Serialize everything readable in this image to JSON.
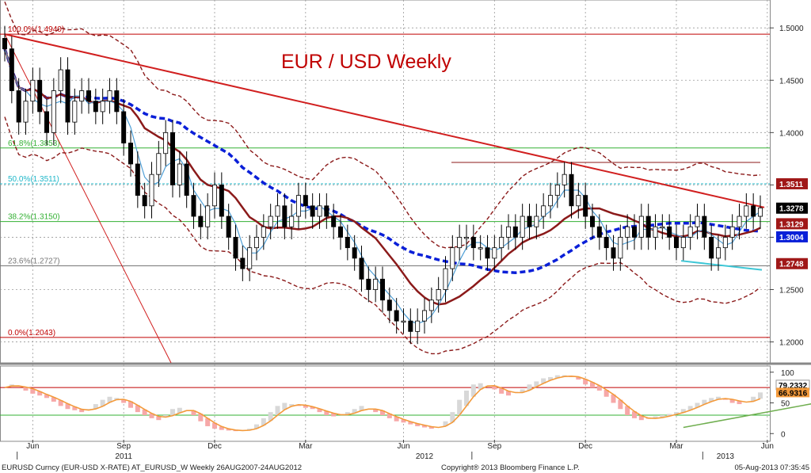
{
  "chart_data": {
    "type": "candlestick",
    "title": "EUR / USD Weekly",
    "ylim": [
      1.18,
      1.51
    ],
    "y_ticks": [
      "1.5000",
      "1.4500",
      "1.4000",
      "1.3500",
      "1.3000",
      "1.2500",
      "1.2000"
    ],
    "x_ticks": [
      {
        "label": "Jun",
        "i": 4
      },
      {
        "label": "Sep",
        "i": 17
      },
      {
        "label": "Dec",
        "i": 30
      },
      {
        "label": "Mar",
        "i": 43
      },
      {
        "label": "Jun",
        "i": 57
      },
      {
        "label": "Sep",
        "i": 70
      },
      {
        "label": "Dec",
        "i": 83
      },
      {
        "label": "Mar",
        "i": 96
      },
      {
        "label": "Jun",
        "i": 109
      }
    ],
    "year_labels": [
      {
        "label": "2011",
        "i": 17
      },
      {
        "label": "2012",
        "i": 60
      },
      {
        "label": "2013",
        "i": 103
      }
    ],
    "closes": [
      1.48,
      1.44,
      1.41,
      1.43,
      1.45,
      1.42,
      1.4,
      1.44,
      1.46,
      1.41,
      1.43,
      1.44,
      1.43,
      1.42,
      1.43,
      1.44,
      1.42,
      1.39,
      1.37,
      1.34,
      1.33,
      1.36,
      1.38,
      1.4,
      1.35,
      1.37,
      1.34,
      1.32,
      1.31,
      1.33,
      1.35,
      1.32,
      1.3,
      1.28,
      1.27,
      1.29,
      1.3,
      1.31,
      1.32,
      1.33,
      1.31,
      1.32,
      1.34,
      1.33,
      1.32,
      1.33,
      1.32,
      1.31,
      1.3,
      1.29,
      1.28,
      1.26,
      1.25,
      1.26,
      1.24,
      1.23,
      1.22,
      1.22,
      1.21,
      1.22,
      1.23,
      1.24,
      1.25,
      1.27,
      1.29,
      1.3,
      1.3,
      1.29,
      1.29,
      1.28,
      1.29,
      1.3,
      1.31,
      1.3,
      1.32,
      1.31,
      1.32,
      1.33,
      1.34,
      1.35,
      1.36,
      1.33,
      1.34,
      1.32,
      1.31,
      1.3,
      1.29,
      1.28,
      1.3,
      1.31,
      1.3,
      1.32,
      1.3,
      1.31,
      1.31,
      1.3,
      1.29,
      1.3,
      1.31,
      1.32,
      1.3,
      1.28,
      1.29,
      1.3,
      1.31,
      1.32,
      1.33,
      1.32,
      1.328
    ],
    "indicators": {
      "ma_fast": "#4f9fd6",
      "ma_slow": "#8b1a1a",
      "ma_long": "#0a1fd8",
      "bands": "#8b1a1a"
    },
    "fib_levels": [
      {
        "label": "100.0%(1.4940)",
        "value": 1.494,
        "color": "#c00000"
      },
      {
        "label": "61.8%(1.3853)",
        "value": 1.3853,
        "color": "#33b033"
      },
      {
        "label": "50.0%(1.3511)",
        "value": 1.3511,
        "color": "#1fb7c9"
      },
      {
        "label": "38.2%(1.3150)",
        "value": 1.315,
        "color": "#33b033"
      },
      {
        "label": "23.6%(1.2727)",
        "value": 1.2727,
        "color": "#777777"
      },
      {
        "label": "0.0%(1.2043)",
        "value": 1.2043,
        "color": "#c00000"
      }
    ],
    "price_tags": [
      {
        "label": "1.3511",
        "value": 1.3511,
        "bg": "#a01818"
      },
      {
        "label": "1.3278",
        "value": 1.3278,
        "bg": "#000000"
      },
      {
        "label": "1.3129",
        "value": 1.3129,
        "bg": "#a01818"
      },
      {
        "label": "1.3004",
        "value": 1.3004,
        "bg": "#0a1fd8"
      },
      {
        "label": "1.2748",
        "value": 1.2748,
        "bg": "#a01818"
      }
    ],
    "oscillator": {
      "ylim": [
        -10,
        110
      ],
      "y_ticks": [
        "100",
        "50",
        "0"
      ],
      "tags": [
        {
          "label": "79.2332",
          "value": 79.2,
          "bg": "#ffffff"
        },
        {
          "label": "66.9316",
          "value": 66.9,
          "bg": "#f39a3b"
        }
      ],
      "line_values": [
        75,
        80,
        78,
        70,
        65,
        62,
        58,
        52,
        45,
        40,
        38,
        35,
        40,
        48,
        55,
        60,
        58,
        50,
        42,
        35,
        30,
        25,
        22,
        30,
        40,
        42,
        38,
        30,
        20,
        12,
        8,
        6,
        5,
        4,
        5,
        8,
        15,
        25,
        35,
        45,
        50,
        48,
        45,
        42,
        40,
        35,
        30,
        28,
        30,
        35,
        40,
        45,
        40,
        35,
        30,
        25,
        20,
        18,
        15,
        12,
        10,
        8,
        10,
        20,
        35,
        55,
        70,
        80,
        82,
        78,
        72,
        65,
        62,
        68,
        72,
        80,
        85,
        90,
        92,
        95,
        95,
        92,
        88,
        80,
        75,
        70,
        60,
        50,
        40,
        30,
        25,
        22,
        24,
        28,
        30,
        32,
        35,
        40,
        45,
        50,
        55,
        58,
        60,
        55,
        50,
        48,
        52,
        60,
        67
      ],
      "trend_line": {
        "from": [
          97,
          10
        ],
        "to": [
          117,
          52
        ]
      },
      "bands": [
        75,
        30
      ]
    }
  },
  "footer": {
    "left": "EURUSD Curncy (EUR-USD X-RATE) AT_EURUSD_W  Weekly 26AUG2007-24AUG2012",
    "middle": "Copyright® 2013 Bloomberg Finance L.P.",
    "right": "05-Aug-2013 07:35:45"
  }
}
